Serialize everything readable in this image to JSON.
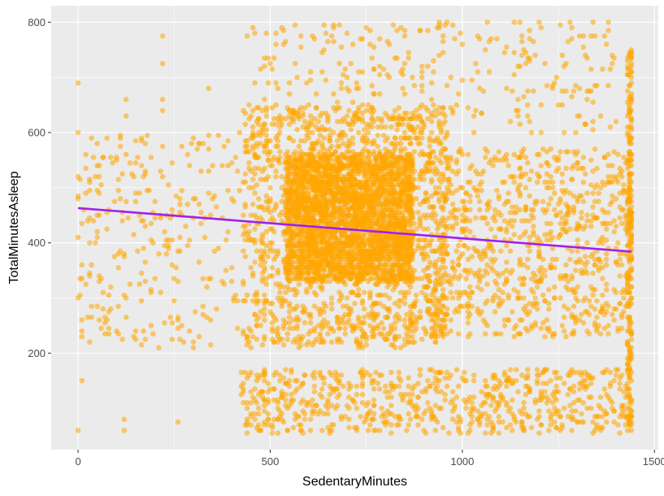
{
  "chart_data": {
    "type": "scatter",
    "title": "",
    "xlabel": "SedentaryMinutes",
    "ylabel": "TotalMinutesAsleep",
    "xlim": [
      -70,
      1510
    ],
    "ylim": [
      25,
      830
    ],
    "x_ticks": [
      0,
      500,
      1000,
      1500
    ],
    "x_tick_labels": [
      "0",
      "500",
      "1000",
      "1500"
    ],
    "y_ticks": [
      200,
      400,
      600,
      800
    ],
    "y_tick_labels": [
      "200",
      "400",
      "600",
      "800"
    ],
    "grid": true,
    "point_color": "#FFA500",
    "point_opacity": 0.55,
    "trend_color": "#A020F0",
    "trend_line": {
      "x": [
        0,
        1440
      ],
      "y": [
        463,
        384
      ]
    },
    "point_clusters": [
      {
        "x": [
          540,
          870
        ],
        "y": [
          330,
          560
        ],
        "count": 2600
      },
      {
        "x": [
          430,
          960
        ],
        "y": [
          210,
          650
        ],
        "count": 1600
      },
      {
        "x": [
          420,
          1440
        ],
        "y": [
          55,
          170
        ],
        "count": 700
      },
      {
        "x": [
          900,
          1440
        ],
        "y": [
          230,
          570
        ],
        "count": 900
      },
      {
        "x": [
          450,
          1400
        ],
        "y": [
          600,
          800
        ],
        "count": 300
      },
      {
        "x": [
          0,
          420
        ],
        "y": [
          210,
          600
        ],
        "count": 260
      },
      {
        "x": [
          1430,
          1442
        ],
        "y": [
          60,
          750
        ],
        "count": 260
      }
    ],
    "points": [
      [
        0,
        692
      ],
      [
        0,
        602
      ],
      [
        0,
        58
      ],
      [
        0,
        520
      ],
      [
        0,
        480
      ],
      [
        0,
        410
      ],
      [
        0,
        300
      ],
      [
        8,
        150
      ],
      [
        8,
        230
      ],
      [
        8,
        260
      ],
      [
        55,
        520
      ],
      [
        55,
        490
      ],
      [
        55,
        340
      ],
      [
        125,
        660
      ],
      [
        125,
        630
      ],
      [
        125,
        560
      ],
      [
        125,
        300
      ],
      [
        120,
        80
      ],
      [
        120,
        60
      ],
      [
        222,
        775
      ],
      [
        222,
        725
      ],
      [
        222,
        660
      ],
      [
        222,
        640
      ],
      [
        258,
        75
      ],
      [
        258,
        260
      ],
      [
        300,
        590
      ],
      [
        340,
        680
      ],
      [
        440,
        775
      ],
      [
        440,
        100
      ],
      [
        440,
        110
      ],
      [
        500,
        500
      ],
      [
        1200,
        800
      ],
      [
        1280,
        800
      ],
      [
        1340,
        800
      ],
      [
        1380,
        800
      ],
      [
        1440,
        750
      ],
      [
        1440,
        700
      ],
      [
        1440,
        640
      ]
    ]
  }
}
